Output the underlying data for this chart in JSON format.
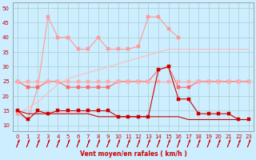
{
  "x": [
    0,
    1,
    2,
    3,
    4,
    5,
    6,
    7,
    8,
    9,
    10,
    11,
    12,
    13,
    14,
    15,
    16,
    17,
    18,
    19,
    20,
    21,
    22,
    23
  ],
  "series": [
    {
      "name": "rafales_max",
      "color": "#ff9999",
      "linewidth": 0.8,
      "marker": "s",
      "markersize": 2.5,
      "values": [
        14,
        12,
        23,
        47,
        40,
        40,
        36,
        36,
        40,
        36,
        36,
        36,
        37,
        47,
        47,
        43,
        40,
        null,
        null,
        null,
        null,
        null,
        null,
        null
      ]
    },
    {
      "name": "rafales_trend",
      "color": "#ffbbbb",
      "linewidth": 0.8,
      "marker": null,
      "markersize": 0,
      "values": [
        14,
        16,
        18,
        21,
        24,
        26,
        27,
        28,
        29,
        30,
        31,
        32,
        33,
        34,
        35,
        36,
        36,
        36,
        36,
        36,
        36,
        36,
        36,
        36
      ]
    },
    {
      "name": "vitesse_max",
      "color": "#ff6666",
      "linewidth": 0.8,
      "marker": "s",
      "markersize": 2.5,
      "values": [
        25,
        23,
        23,
        25,
        25,
        23,
        23,
        23,
        23,
        23,
        25,
        25,
        25,
        25,
        29,
        30,
        23,
        23,
        25,
        25,
        25,
        25,
        25,
        25
      ]
    },
    {
      "name": "vitesse_line25",
      "color": "#ffaaaa",
      "linewidth": 0.8,
      "marker": "s",
      "markersize": 2.5,
      "values": [
        25,
        25,
        25,
        25,
        25,
        25,
        25,
        25,
        25,
        25,
        25,
        25,
        25,
        25,
        25,
        25,
        25,
        25,
        25,
        25,
        25,
        25,
        25,
        25
      ]
    },
    {
      "name": "vitesse_moyen",
      "color": "#cc0000",
      "linewidth": 0.8,
      "marker": "s",
      "markersize": 2.5,
      "values": [
        15,
        12,
        15,
        14,
        15,
        15,
        15,
        15,
        15,
        15,
        13,
        13,
        13,
        13,
        29,
        30,
        19,
        19,
        14,
        14,
        14,
        14,
        12,
        12
      ]
    },
    {
      "name": "min_line",
      "color": "#cc0000",
      "linewidth": 0.8,
      "marker": null,
      "markersize": 0,
      "values": [
        15,
        14,
        14,
        14,
        14,
        14,
        14,
        14,
        13,
        13,
        13,
        13,
        13,
        13,
        13,
        13,
        13,
        12,
        12,
        12,
        12,
        12,
        12,
        12
      ]
    }
  ],
  "xlabel": "Vent moyen/en rafales ( km/h )",
  "ylim": [
    8,
    52
  ],
  "yticks": [
    10,
    15,
    20,
    25,
    30,
    35,
    40,
    45,
    50
  ],
  "xlim": [
    -0.5,
    23.5
  ],
  "xticks": [
    0,
    1,
    2,
    3,
    4,
    5,
    6,
    7,
    8,
    9,
    10,
    11,
    12,
    13,
    14,
    15,
    16,
    17,
    18,
    19,
    20,
    21,
    22,
    23
  ],
  "bg_color": "#cceeff",
  "grid_color": "#aacccc"
}
